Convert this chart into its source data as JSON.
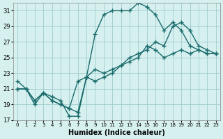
{
  "xlabel": "Humidex (Indice chaleur)",
  "bg_color": "#d6f0f0",
  "grid_color": "#a0cccc",
  "line_color": "#1a6b6b",
  "xlim": [
    -0.5,
    23.5
  ],
  "ylim": [
    17,
    32
  ],
  "yticks": [
    17,
    19,
    21,
    23,
    25,
    27,
    29,
    31
  ],
  "xticks": [
    0,
    1,
    2,
    3,
    4,
    5,
    6,
    7,
    8,
    9,
    10,
    11,
    12,
    13,
    14,
    15,
    16,
    17,
    18,
    19,
    20,
    21,
    22,
    23
  ],
  "line1_x": [
    0,
    1,
    2,
    3,
    4,
    5,
    6,
    7,
    8,
    9,
    10,
    11,
    12,
    13,
    14,
    15,
    16,
    17,
    18,
    19,
    20,
    21,
    22,
    23
  ],
  "line1_y": [
    22.0,
    21.0,
    19.0,
    20.5,
    20.0,
    19.5,
    17.5,
    17.5,
    22.5,
    28.0,
    30.5,
    31.0,
    31.0,
    31.0,
    32.0,
    31.5,
    30.5,
    28.5,
    29.5,
    28.5,
    26.5,
    26.0,
    25.5,
    25.5
  ],
  "line2_x": [
    0,
    1,
    2,
    3,
    4,
    5,
    6,
    7,
    8,
    9,
    10,
    11,
    12,
    13,
    14,
    15,
    16,
    17,
    18,
    19,
    20,
    21,
    22,
    23
  ],
  "line2_y": [
    21.0,
    21.0,
    19.5,
    20.5,
    19.5,
    19.0,
    18.5,
    22.0,
    22.5,
    23.5,
    23.0,
    23.5,
    24.0,
    25.0,
    25.5,
    26.0,
    27.0,
    26.5,
    29.0,
    29.5,
    28.5,
    26.5,
    26.0,
    25.5
  ],
  "line3_x": [
    0,
    1,
    2,
    3,
    4,
    5,
    6,
    7,
    8,
    9,
    10,
    11,
    12,
    13,
    14,
    15,
    16,
    17,
    18,
    19,
    20,
    21,
    22,
    23
  ],
  "line3_y": [
    21.0,
    21.0,
    19.5,
    20.5,
    19.5,
    19.0,
    18.5,
    18.0,
    22.5,
    22.0,
    22.5,
    23.0,
    24.0,
    24.5,
    25.0,
    26.5,
    26.0,
    25.0,
    25.5,
    26.0,
    25.5,
    26.0,
    25.5,
    25.5
  ]
}
